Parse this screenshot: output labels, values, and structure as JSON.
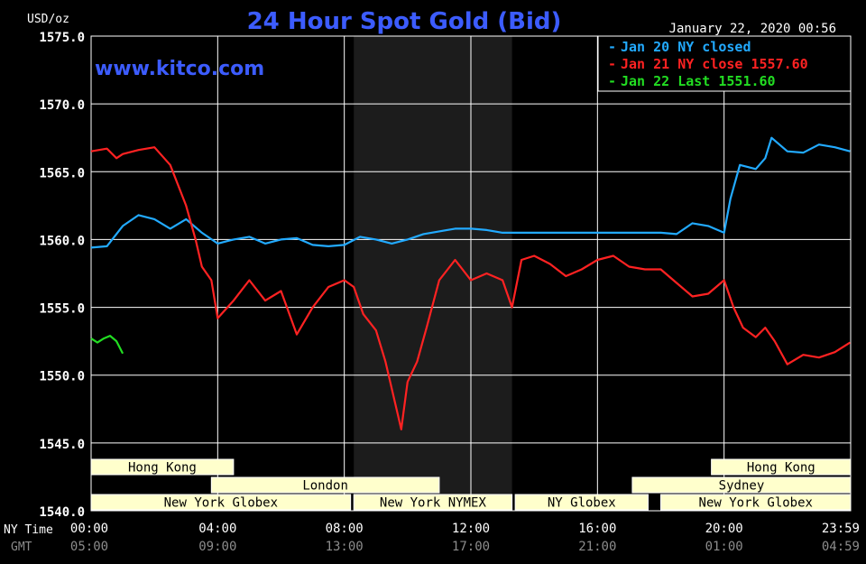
{
  "title": "24 Hour Spot Gold (Bid)",
  "unit_label": "USD/oz",
  "watermark": "www.kitco.com",
  "timestamp": "January 22, 2020 00:56",
  "axis_row_labels": {
    "ny": "NY Time",
    "gmt": "GMT"
  },
  "chart_data": {
    "type": "line",
    "title": "24 Hour Spot Gold (Bid)",
    "ylabel": "USD/oz",
    "ylim": [
      1540,
      1575
    ],
    "yticks": [
      1540,
      1545,
      1550,
      1555,
      1560,
      1565,
      1570,
      1575
    ],
    "ytick_labels": [
      "1540.0",
      "1545.0",
      "1550.0",
      "1555.0",
      "1560.0",
      "1565.0",
      "1570.0",
      "1575.0"
    ],
    "xlim": [
      0,
      24
    ],
    "xticks_ny": [
      "00:00",
      "04:00",
      "08:00",
      "12:00",
      "16:00",
      "20:00",
      "23:59"
    ],
    "xticks_gmt": [
      "05:00",
      "09:00",
      "13:00",
      "17:00",
      "21:00",
      "01:00",
      "04:59"
    ],
    "xtick_hours": [
      0,
      4,
      8,
      12,
      16,
      20,
      23.98
    ],
    "grid": true,
    "legend_position": "top-right",
    "shaded_band_hours": [
      8.3,
      13.3
    ],
    "series": [
      {
        "name": "Jan 20 NY closed",
        "color": "#22aaff",
        "x": [
          0,
          0.5,
          1.0,
          1.5,
          2.0,
          2.5,
          3.0,
          3.5,
          4.0,
          4.5,
          5.0,
          5.5,
          6.0,
          6.5,
          7.0,
          7.5,
          8.0,
          8.5,
          9.0,
          9.5,
          10.0,
          10.5,
          11.0,
          11.5,
          12.0,
          12.5,
          13.0,
          14.0,
          15.0,
          16.0,
          17.0,
          18.0,
          18.5,
          19.0,
          19.5,
          20.0,
          20.2,
          20.5,
          21.0,
          21.3,
          21.5,
          22.0,
          22.5,
          23.0,
          23.5,
          23.98
        ],
        "y": [
          1559.4,
          1559.5,
          1561.0,
          1561.8,
          1561.5,
          1560.8,
          1561.5,
          1560.5,
          1559.7,
          1560.0,
          1560.2,
          1559.7,
          1560.0,
          1560.1,
          1559.6,
          1559.5,
          1559.6,
          1560.2,
          1560.0,
          1559.7,
          1560.0,
          1560.4,
          1560.6,
          1560.8,
          1560.8,
          1560.7,
          1560.5,
          1560.5,
          1560.5,
          1560.5,
          1560.5,
          1560.5,
          1560.4,
          1561.2,
          1561.0,
          1560.5,
          1563.0,
          1565.5,
          1565.2,
          1566.0,
          1567.5,
          1566.5,
          1566.4,
          1567.0,
          1566.8,
          1566.5
        ]
      },
      {
        "name": "Jan 21 NY close 1557.60",
        "color": "#ff2222",
        "x": [
          0,
          0.5,
          0.8,
          1.0,
          1.5,
          2.0,
          2.5,
          3.0,
          3.3,
          3.5,
          3.8,
          4.0,
          4.5,
          5.0,
          5.5,
          6.0,
          6.5,
          7.0,
          7.5,
          8.0,
          8.3,
          8.6,
          9.0,
          9.3,
          9.5,
          9.8,
          10.0,
          10.3,
          10.6,
          11.0,
          11.5,
          12.0,
          12.5,
          13.0,
          13.3,
          13.6,
          14.0,
          14.5,
          15.0,
          15.5,
          16.0,
          16.5,
          17.0,
          17.5,
          18.0,
          18.5,
          19.0,
          19.5,
          20.0,
          20.3,
          20.6,
          21.0,
          21.3,
          21.6,
          22.0,
          22.5,
          23.0,
          23.5,
          23.98
        ],
        "y": [
          1566.5,
          1566.7,
          1566.0,
          1566.3,
          1566.6,
          1566.8,
          1565.5,
          1562.5,
          1560.0,
          1558.0,
          1557.0,
          1554.2,
          1555.5,
          1557.0,
          1555.5,
          1556.2,
          1553.0,
          1555.0,
          1556.5,
          1557.0,
          1556.5,
          1554.5,
          1553.3,
          1551.0,
          1549.0,
          1546.0,
          1549.5,
          1551.0,
          1553.5,
          1557.0,
          1558.5,
          1557.0,
          1557.5,
          1557.0,
          1555.0,
          1558.5,
          1558.8,
          1558.2,
          1557.3,
          1557.8,
          1558.5,
          1558.8,
          1558.0,
          1557.8,
          1557.8,
          1556.8,
          1555.8,
          1556.0,
          1557.0,
          1555.0,
          1553.5,
          1552.8,
          1553.5,
          1552.5,
          1550.8,
          1551.5,
          1551.3,
          1551.7,
          1552.4
        ]
      },
      {
        "name": "Jan 22 Last 1551.60",
        "color": "#22dd22",
        "x": [
          0,
          0.2,
          0.4,
          0.6,
          0.8,
          1.0
        ],
        "y": [
          1552.7,
          1552.4,
          1552.7,
          1552.9,
          1552.5,
          1551.6
        ]
      }
    ]
  },
  "sessions": {
    "row1": [
      {
        "label": "Hong Kong",
        "start": 0,
        "end": 4.5
      },
      {
        "label": "Hong Kong",
        "start": 19.6,
        "end": 24
      }
    ],
    "row2": [
      {
        "label": "London",
        "start": 3.8,
        "end": 11.0
      },
      {
        "label": "Sydney",
        "start": 17.1,
        "end": 24
      }
    ],
    "row3": [
      {
        "label": "New York Globex",
        "start": 0,
        "end": 8.2
      },
      {
        "label": "New York NYMEX",
        "start": 8.3,
        "end": 13.3
      },
      {
        "label": "NY Globex",
        "start": 13.4,
        "end": 17.6
      },
      {
        "label": "New York Globex",
        "start": 18.0,
        "end": 24
      }
    ]
  },
  "colors": {
    "background": "#000000",
    "grid": "#ffffff",
    "title": "#3c5cff",
    "tick_text": "#ffffff",
    "gmt_text": "#8c8c8c",
    "band": "#1c1c1c",
    "session_fill": "#ffffcc",
    "session_text": "#000000"
  }
}
